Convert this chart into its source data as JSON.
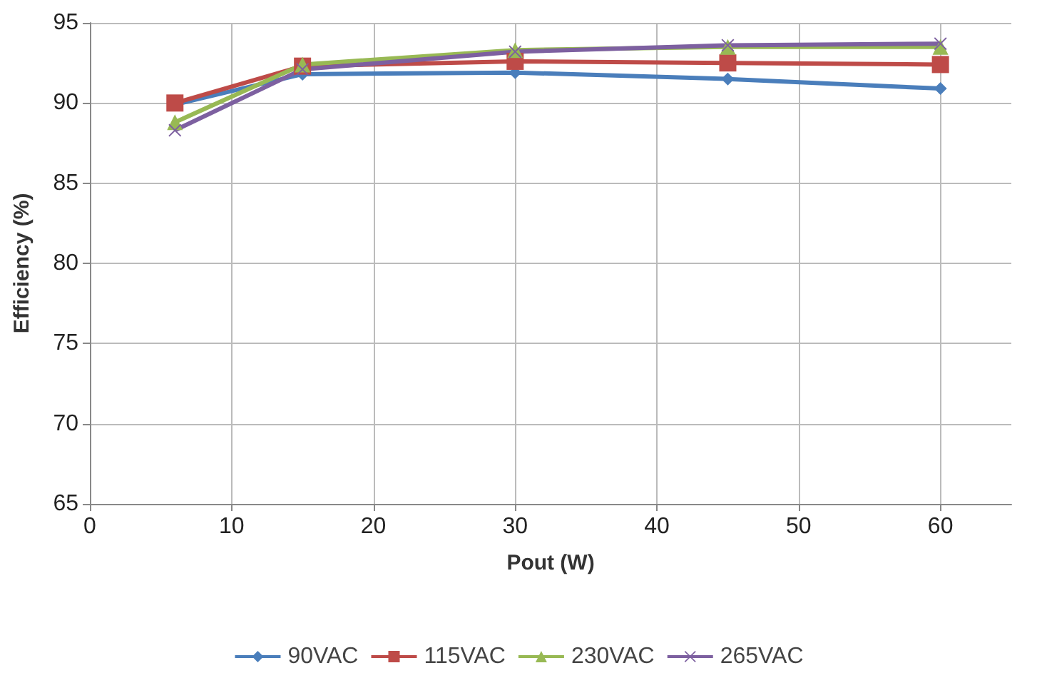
{
  "chart_data": {
    "type": "line",
    "xlabel": "Pout (W)",
    "ylabel": "Efficiency (%)",
    "xlim": [
      0,
      65
    ],
    "xticks": [
      0,
      10,
      20,
      30,
      40,
      50,
      60
    ],
    "ylim": [
      65,
      95
    ],
    "yticks": [
      65,
      70,
      75,
      80,
      85,
      90,
      95
    ],
    "grid": true,
    "legend": "bottom",
    "x": [
      6,
      15,
      30,
      45,
      60
    ],
    "series": [
      {
        "name": "90VAC",
        "color": "#4a7ebb",
        "marker": "diamond",
        "values": [
          89.9,
          91.8,
          91.9,
          91.5,
          90.9
        ]
      },
      {
        "name": "115VAC",
        "color": "#be4b48",
        "marker": "square",
        "values": [
          90.0,
          92.3,
          92.6,
          92.5,
          92.4
        ]
      },
      {
        "name": "230VAC",
        "color": "#98b954",
        "marker": "triangle",
        "values": [
          88.8,
          92.4,
          93.3,
          93.5,
          93.5
        ]
      },
      {
        "name": "265VAC",
        "color": "#7d60a0",
        "marker": "cross",
        "values": [
          88.3,
          92.1,
          93.2,
          93.6,
          93.7
        ]
      }
    ]
  }
}
